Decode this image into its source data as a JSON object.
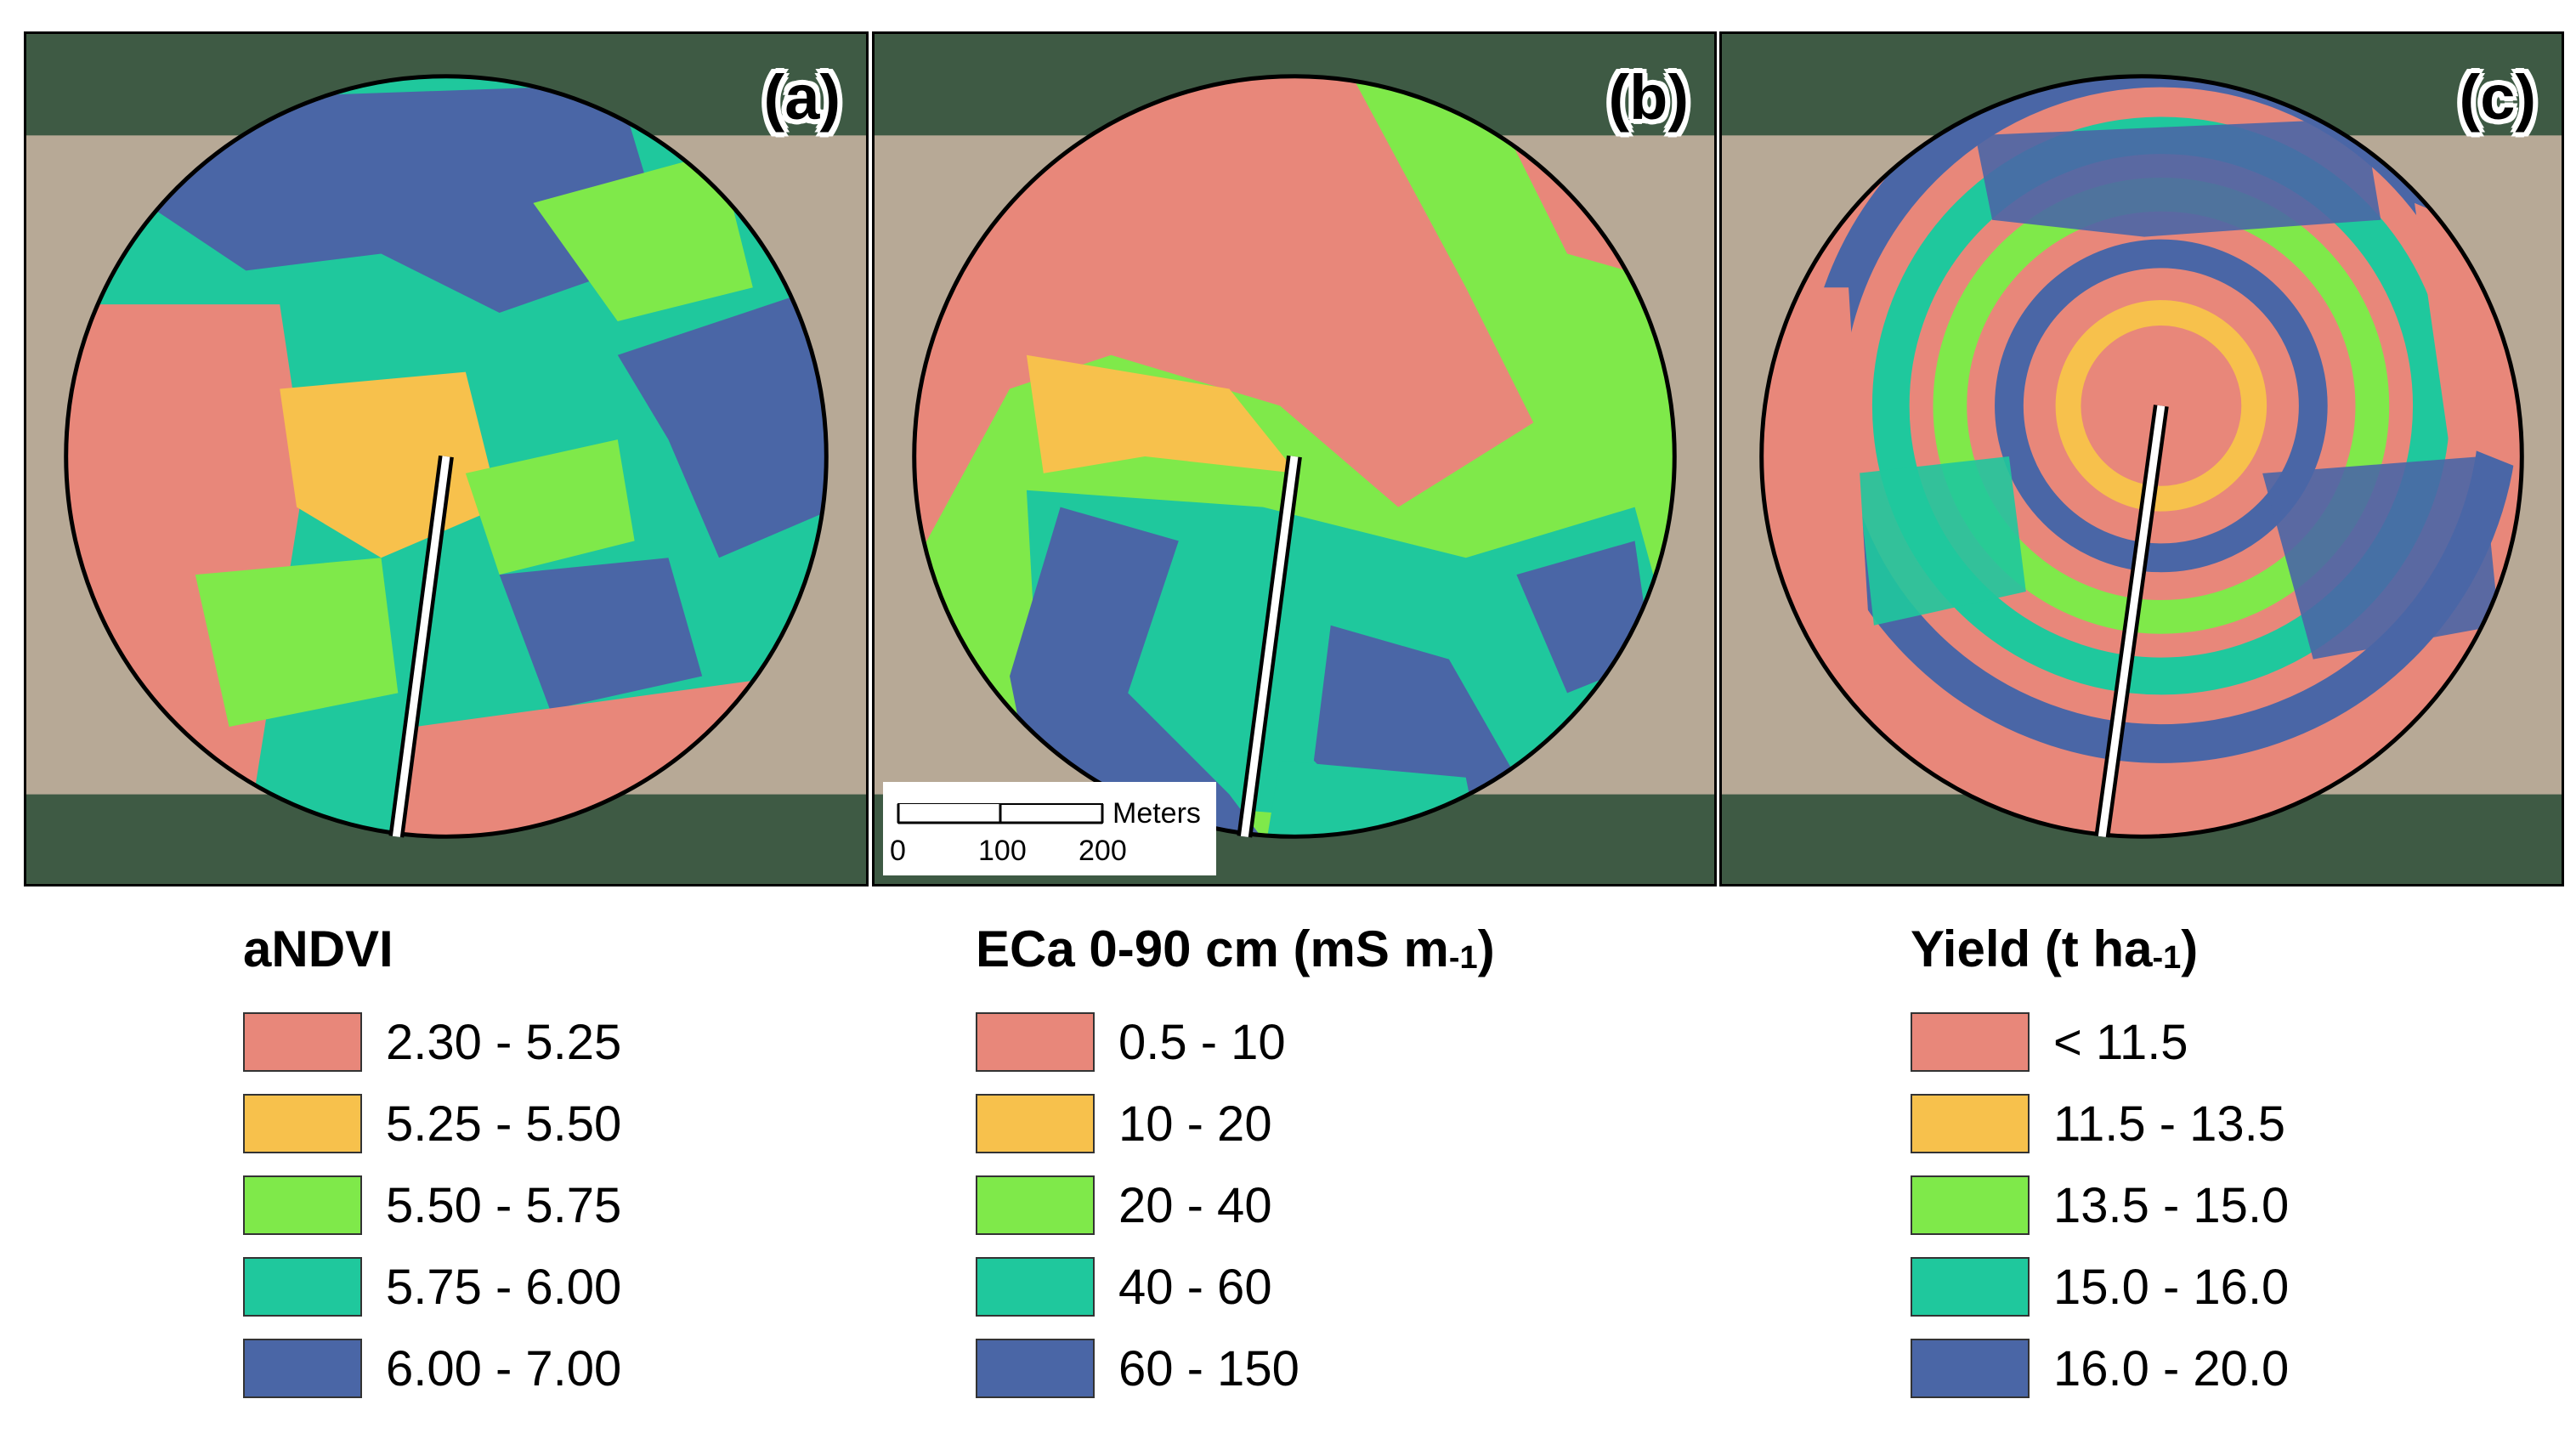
{
  "colors": {
    "class1": "#e8877a",
    "class2": "#f7c14c",
    "class3": "#7fe94a",
    "class4": "#1fc89d",
    "class5": "#4a66a6",
    "bare_soil": "#b7a996",
    "orchard": "#3e5a44"
  },
  "panels": [
    {
      "label": "(a)",
      "variable": "aNDVI"
    },
    {
      "label": "(b)",
      "variable": "ECa"
    },
    {
      "label": "(c)",
      "variable": "Yield"
    }
  ],
  "scalebar": {
    "unit": "Meters",
    "ticks": [
      "0",
      "100",
      "200"
    ]
  },
  "legends": [
    {
      "title_main": "aNDVI",
      "title_sub": "",
      "title_end": "",
      "items": [
        "2.30 - 5.25",
        "5.25 - 5.50",
        "5.50 - 5.75",
        "5.75 - 6.00",
        "6.00 - 7.00"
      ]
    },
    {
      "title_main": "ECa 0-90 cm (mS m",
      "title_sub": "-1",
      "title_end": ")",
      "items": [
        "0.5 - 10",
        "10 - 20",
        "20 - 40",
        "40 - 60",
        "60 - 150"
      ]
    },
    {
      "title_main": "Yield (t ha",
      "title_sub": "-1",
      "title_end": ")",
      "items": [
        "< 11.5",
        "11.5 - 13.5",
        "13.5 - 15.0",
        "15.0 - 16.0",
        "16.0 - 20.0"
      ]
    }
  ]
}
